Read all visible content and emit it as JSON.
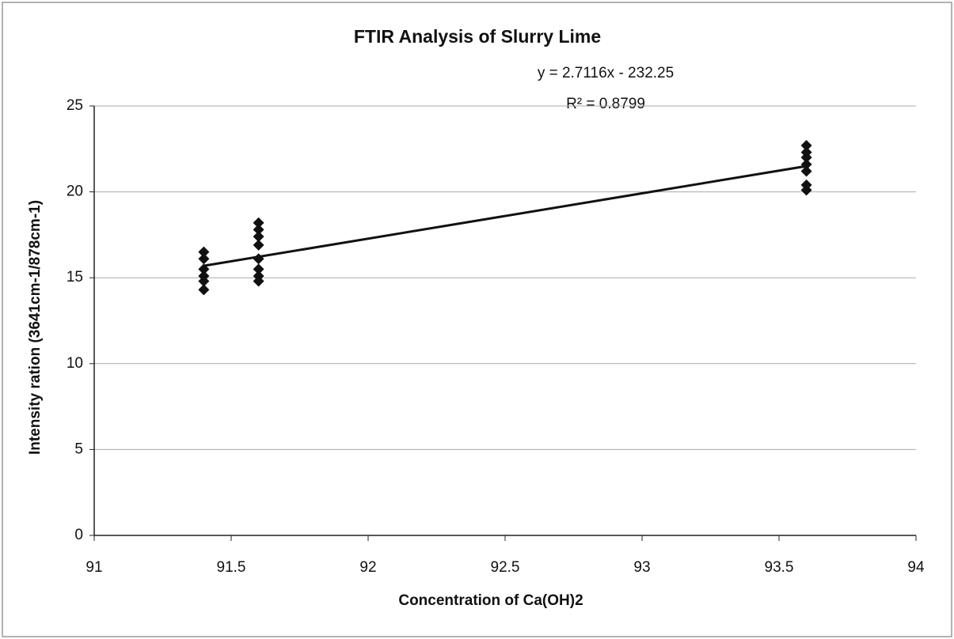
{
  "chart_data": {
    "type": "scatter",
    "title": "FTIR Analysis of Slurry Lime",
    "annotations": [
      "y = 2.7116x - 232.25",
      "R² = 0.8799"
    ],
    "x_label": "Concentration of Ca(OH)2",
    "y_label": "Intensity ration (3641cm-1/878cm-1)",
    "series": [
      {
        "color": "#111111",
        "x": [
          91.4,
          91.4,
          91.4,
          91.4,
          91.4,
          91.4,
          91.6,
          91.6,
          91.6,
          91.6,
          91.6,
          91.6,
          91.6,
          91.6,
          93.6,
          93.6,
          93.6,
          93.6,
          93.6,
          93.6,
          93.6
        ],
        "values": [
          16.5,
          16.1,
          15.5,
          15.1,
          14.8,
          14.3,
          18.2,
          17.8,
          17.4,
          16.9,
          16.1,
          15.5,
          15.1,
          14.8,
          22.7,
          22.3,
          22.0,
          21.6,
          21.2,
          20.4,
          20.1
        ]
      }
    ],
    "trendline": "linear",
    "xlim": [
      91,
      94
    ],
    "xticks": [
      91,
      91.5,
      92,
      92.5,
      93,
      93.5,
      94
    ],
    "ylim": [
      0,
      25
    ],
    "yticks": [
      0,
      5,
      10,
      15,
      20,
      25
    ],
    "grid": true
  }
}
